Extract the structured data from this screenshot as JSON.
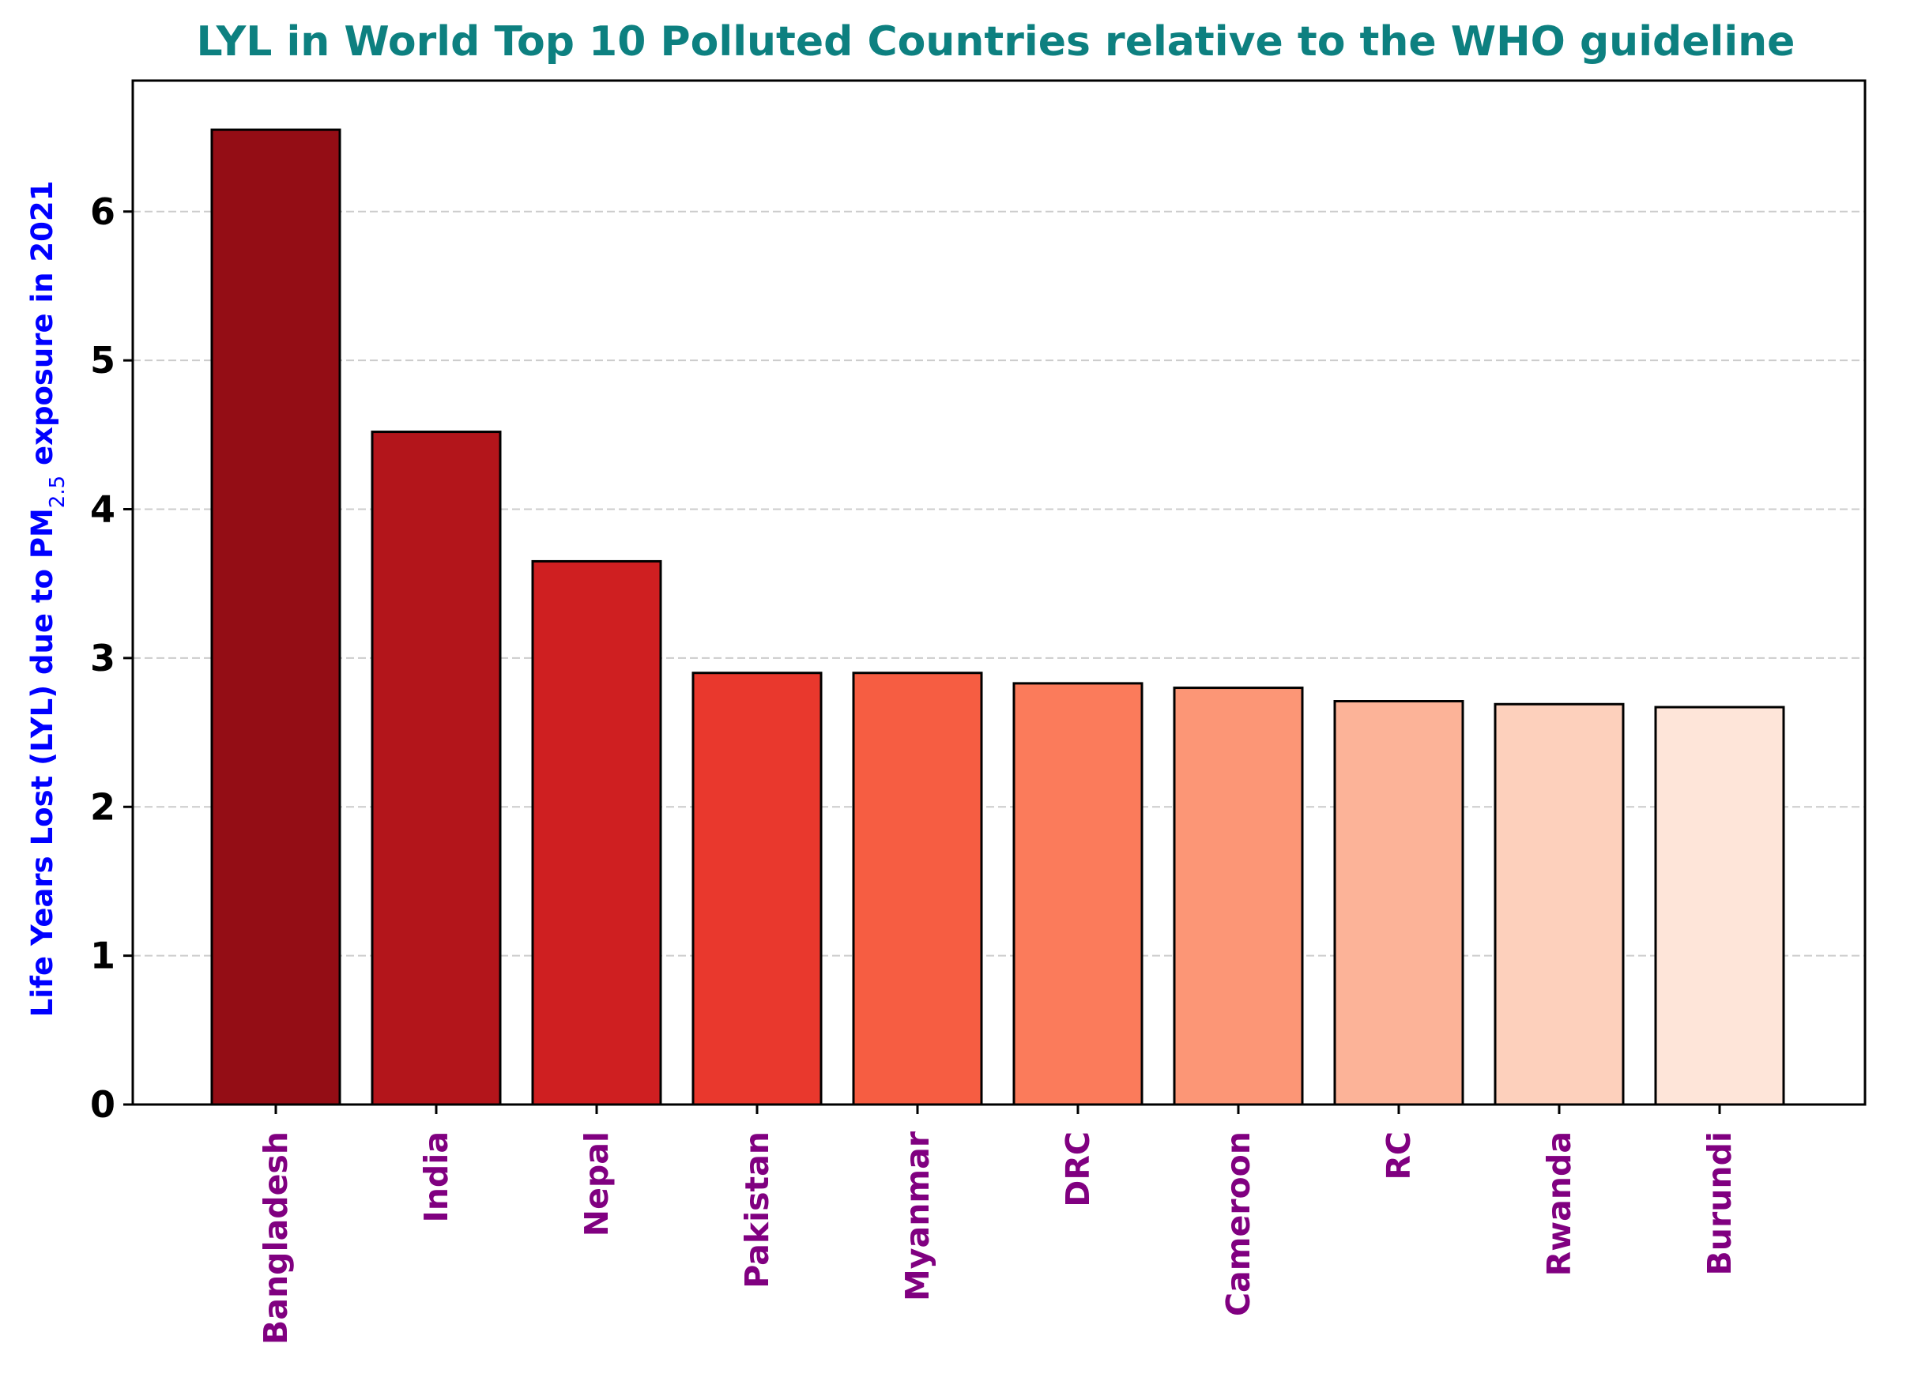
{
  "chart_data": {
    "type": "bar",
    "title": "LYL in World Top 10 Polluted Countries relative to the WHO guideline",
    "xlabel": "",
    "ylabel": {
      "prefix": "Life Years Lost (LYL) due to PM",
      "subscript": "2.5",
      "suffix": " exposure in 2021"
    },
    "categories": [
      "Bangladesh",
      "India",
      "Nepal",
      "Pakistan",
      "Myanmar",
      "DRC",
      "Cameroon",
      "RC",
      "Rwanda",
      "Burundi"
    ],
    "values": [
      6.55,
      4.52,
      3.65,
      2.9,
      2.9,
      2.83,
      2.8,
      2.71,
      2.69,
      2.67
    ],
    "bar_colors": [
      "#940d15",
      "#b3151b",
      "#cf1f21",
      "#e9382d",
      "#f65d42",
      "#fb7b5b",
      "#fc9676",
      "#fcb398",
      "#fdd0bc",
      "#fee5d9"
    ],
    "ylim": [
      0,
      6.88
    ],
    "yticks": [
      0,
      1,
      2,
      3,
      4,
      5,
      6
    ],
    "grid": "y-dashed",
    "colors": {
      "title": "#0d8080",
      "ylabel": "#0000ff",
      "xtick_labels": "#800080",
      "ytick_labels": "#000000",
      "bar_edge": "#000000",
      "grid": "#cccccc"
    }
  }
}
